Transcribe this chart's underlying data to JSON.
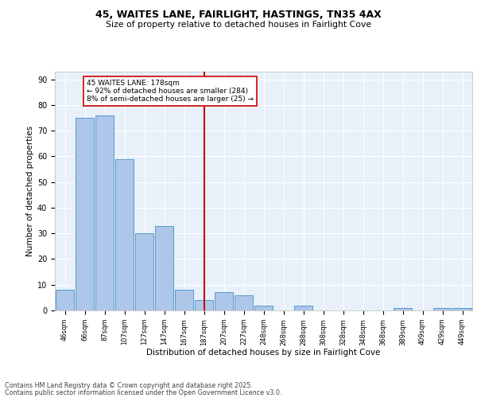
{
  "title1": "45, WAITES LANE, FAIRLIGHT, HASTINGS, TN35 4AX",
  "title2": "Size of property relative to detached houses in Fairlight Cove",
  "xlabel": "Distribution of detached houses by size in Fairlight Cove",
  "ylabel": "Number of detached properties",
  "bar_labels": [
    "46sqm",
    "66sqm",
    "87sqm",
    "107sqm",
    "127sqm",
    "147sqm",
    "167sqm",
    "187sqm",
    "207sqm",
    "227sqm",
    "248sqm",
    "268sqm",
    "288sqm",
    "308sqm",
    "328sqm",
    "348sqm",
    "368sqm",
    "389sqm",
    "409sqm",
    "429sqm",
    "449sqm"
  ],
  "bar_values": [
    8,
    75,
    76,
    59,
    30,
    33,
    8,
    4,
    7,
    6,
    2,
    0,
    2,
    0,
    0,
    0,
    0,
    1,
    0,
    1,
    1
  ],
  "bar_color": "#aec6e8",
  "bar_edge_color": "#5599cc",
  "vline_x": 7,
  "vline_color": "#cc0000",
  "annotation_text": "45 WAITES LANE: 178sqm\n← 92% of detached houses are smaller (284)\n8% of semi-detached houses are larger (25) →",
  "annotation_box_color": "#ffffff",
  "annotation_border_color": "#cc0000",
  "ylim": [
    0,
    93
  ],
  "yticks": [
    0,
    10,
    20,
    30,
    40,
    50,
    60,
    70,
    80,
    90
  ],
  "background_color": "#e8f0fa",
  "fig_background": "#ffffff",
  "footer1": "Contains HM Land Registry data © Crown copyright and database right 2025.",
  "footer2": "Contains public sector information licensed under the Open Government Licence v3.0."
}
